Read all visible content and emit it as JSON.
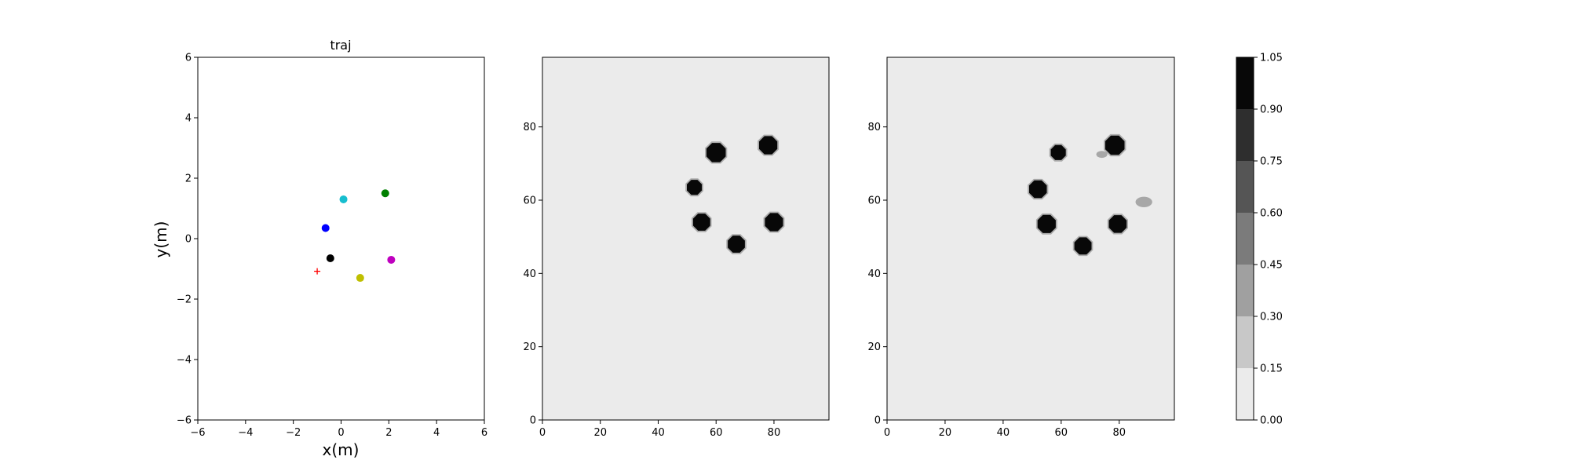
{
  "chart_data": [
    {
      "type": "scatter",
      "title": "traj",
      "xlabel": "x(m)",
      "ylabel": "y(m)",
      "xlim": [
        -6,
        6
      ],
      "ylim": [
        -6,
        6
      ],
      "xticks": [
        "−6",
        "−4",
        "−2",
        "0",
        "2",
        "4",
        "6"
      ],
      "yticks": [
        "−6",
        "−4",
        "−2",
        "0",
        "2",
        "4",
        "6"
      ],
      "grid": false,
      "points": [
        {
          "x": 0.1,
          "y": 1.3,
          "color": "#17becf",
          "marker": "circle"
        },
        {
          "x": 1.85,
          "y": 1.5,
          "color": "#008000",
          "marker": "circle"
        },
        {
          "x": -0.65,
          "y": 0.35,
          "color": "#0000ff",
          "marker": "circle"
        },
        {
          "x": -0.45,
          "y": -0.65,
          "color": "#000000",
          "marker": "circle"
        },
        {
          "x": 2.1,
          "y": -0.7,
          "color": "#bf00bf",
          "marker": "circle"
        },
        {
          "x": 0.8,
          "y": -1.3,
          "color": "#bfbf00",
          "marker": "circle"
        },
        {
          "x": -1.0,
          "y": -1.08,
          "color": "#ff0000",
          "marker": "plus"
        }
      ]
    },
    {
      "type": "heatmap",
      "xlim": [
        0,
        99
      ],
      "ylim": [
        0,
        99
      ],
      "xticks": [
        "0",
        "20",
        "40",
        "60",
        "80"
      ],
      "yticks": [
        "0",
        "20",
        "40",
        "60",
        "80"
      ],
      "background_value": 0.05,
      "blobs": [
        {
          "x": 60,
          "y": 73,
          "r": 3.6,
          "value": 1.0
        },
        {
          "x": 78,
          "y": 75,
          "r": 3.4,
          "value": 1.0
        },
        {
          "x": 52.5,
          "y": 63.5,
          "r": 2.8,
          "value": 1.0
        },
        {
          "x": 55,
          "y": 54,
          "r": 3.2,
          "value": 1.0
        },
        {
          "x": 80,
          "y": 54,
          "r": 3.4,
          "value": 1.0
        },
        {
          "x": 67,
          "y": 48,
          "r": 3.2,
          "value": 1.0
        }
      ]
    },
    {
      "type": "heatmap",
      "xlim": [
        0,
        99
      ],
      "ylim": [
        0,
        99
      ],
      "xticks": [
        "0",
        "20",
        "40",
        "60",
        "80"
      ],
      "yticks": [
        "0",
        "20",
        "40",
        "60",
        "80"
      ],
      "background_value": 0.05,
      "blobs": [
        {
          "x": 59,
          "y": 73,
          "r": 2.8,
          "value": 1.0
        },
        {
          "x": 78.5,
          "y": 75,
          "r": 3.6,
          "value": 1.0
        },
        {
          "x": 52,
          "y": 63,
          "r": 3.3,
          "value": 1.0
        },
        {
          "x": 55,
          "y": 53.5,
          "r": 3.4,
          "value": 1.0
        },
        {
          "x": 79.5,
          "y": 53.5,
          "r": 3.3,
          "value": 1.0
        },
        {
          "x": 67.5,
          "y": 47.5,
          "r": 3.2,
          "value": 1.0
        },
        {
          "x": 74,
          "y": 72.5,
          "r": 1.6,
          "value": 0.3
        },
        {
          "x": 88.5,
          "y": 59.5,
          "r": 2.4,
          "value": 0.3
        }
      ]
    },
    {
      "type": "colorbar",
      "levels": [
        0.0,
        0.15,
        0.3,
        0.45,
        0.6,
        0.75,
        0.9,
        1.05
      ],
      "tick_labels": [
        "0.00",
        "0.15",
        "0.30",
        "0.45",
        "0.60",
        "0.75",
        "0.90",
        "1.05"
      ],
      "colors": [
        "#ebebeb",
        "#c8c8c8",
        "#a0a0a0",
        "#7b7b7b",
        "#555555",
        "#2e2e2e",
        "#080808"
      ]
    }
  ]
}
